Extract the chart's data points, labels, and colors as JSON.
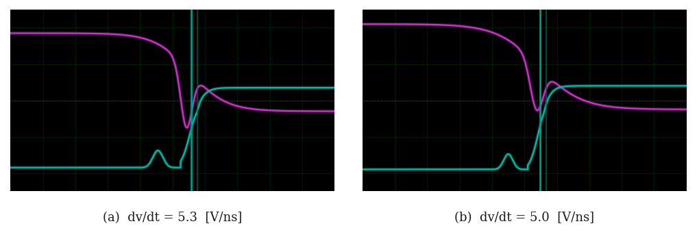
{
  "fig_width": 10.17,
  "fig_height": 3.49,
  "bg_color": "#000000",
  "fig_bg_color": "#ffffff",
  "magenta_color": "#cc33cc",
  "cyan_color": "#00bbaa",
  "grid_color": "#002200",
  "trig_color1": "#009988",
  "trig_color2": "#006655",
  "caption_a": "(a)  dv/dt = 5.3  [V/ns]",
  "caption_b": "(b)  dv/dt = 5.0  [V/ns]",
  "caption_fontsize": 13,
  "caption_color": "#1a1a1a"
}
